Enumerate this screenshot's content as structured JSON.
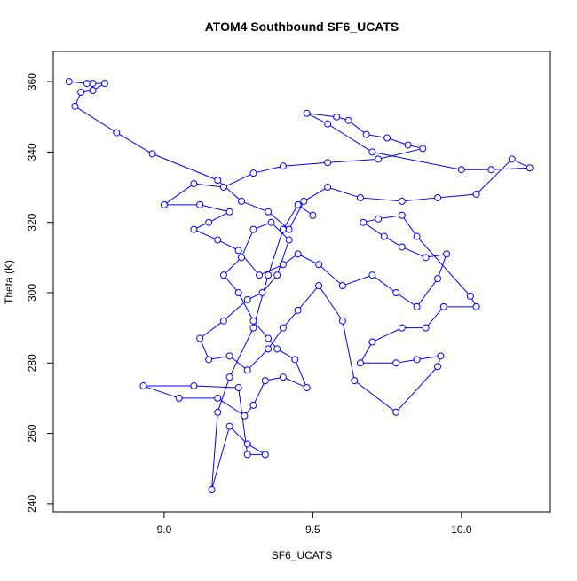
{
  "chart_data": {
    "type": "scatter",
    "lines": true,
    "title": "ATOM4 Southbound SF6_UCATS",
    "x_label": "SF6_UCATS",
    "y_label": "Theta (K)",
    "xlim": [
      8.627,
      10.299
    ],
    "ylim": [
      237.7,
      368.6
    ],
    "xticks": [
      {
        "value": 9,
        "label": "9.0"
      },
      {
        "value": 9.5,
        "label": "9.5"
      },
      {
        "value": 10,
        "label": "10.0"
      }
    ],
    "yticks": [
      240,
      260,
      280,
      300,
      320,
      340,
      360
    ],
    "grid": false,
    "series": [
      {
        "color": "#0000ff",
        "x": [
          8.68,
          8.74,
          8.76,
          8.8,
          8.76,
          8.72,
          8.7,
          8.84,
          8.96,
          9.18,
          9.26,
          9.35,
          9.42,
          9.47,
          9.55,
          9.66,
          9.8,
          9.92,
          10.05,
          10.17,
          10.23,
          10.1,
          10.0,
          9.7,
          9.55,
          9.48,
          9.58,
          9.62,
          9.68,
          9.75,
          9.82,
          9.87,
          9.72,
          9.55,
          9.4,
          9.3,
          9.2,
          9.1,
          9.0,
          9.12,
          9.22,
          9.15,
          9.1,
          9.18,
          9.25,
          9.32,
          9.4,
          9.45,
          9.52,
          9.6,
          9.7,
          9.78,
          9.85,
          9.92,
          9.95,
          9.88,
          9.8,
          9.74,
          9.67,
          9.72,
          9.8,
          9.85,
          10.03,
          10.05,
          9.94,
          9.88,
          9.8,
          9.7,
          9.66,
          9.78,
          9.85,
          9.93,
          9.92,
          9.78,
          9.64,
          9.6,
          9.52,
          9.45,
          9.4,
          9.35,
          9.28,
          9.22,
          9.15,
          9.12,
          9.2,
          9.28,
          9.33,
          9.38,
          9.42,
          9.36,
          9.3,
          9.26,
          9.2,
          9.25,
          9.3,
          9.35,
          9.38,
          9.44,
          9.48,
          9.4,
          9.34,
          9.3,
          9.27,
          9.18,
          9.05,
          8.93,
          9.1,
          9.25,
          9.28,
          9.34,
          9.28,
          9.22,
          9.16,
          9.18,
          9.22,
          9.3,
          9.35,
          9.4,
          9.45,
          9.5
        ],
        "y": [
          360,
          359.5,
          359.5,
          359.5,
          357.5,
          357,
          353,
          345.5,
          339.5,
          332,
          326,
          323,
          318,
          326,
          330,
          327,
          326,
          327,
          328,
          338,
          335.5,
          335,
          335,
          340,
          348,
          351,
          350,
          349,
          345,
          344,
          342,
          341,
          338,
          337,
          336,
          334,
          330,
          331,
          325,
          325,
          323,
          320,
          318,
          315,
          312,
          305,
          308,
          311,
          308,
          302,
          305,
          300,
          296,
          304,
          311,
          310,
          313,
          316,
          320,
          321,
          322,
          316,
          299,
          296,
          296,
          290,
          290,
          286,
          280,
          280,
          281,
          282,
          279,
          266,
          275,
          292,
          302,
          295,
          290,
          284,
          278,
          282,
          281,
          287,
          292,
          298,
          300,
          305,
          315,
          320,
          318,
          310,
          305,
          300,
          292,
          287,
          284,
          281,
          273,
          276,
          275,
          268,
          265,
          270,
          270,
          273.5,
          273.5,
          273,
          254,
          254,
          257,
          262,
          244,
          266,
          276,
          290,
          305,
          318,
          325,
          322
        ]
      }
    ]
  }
}
